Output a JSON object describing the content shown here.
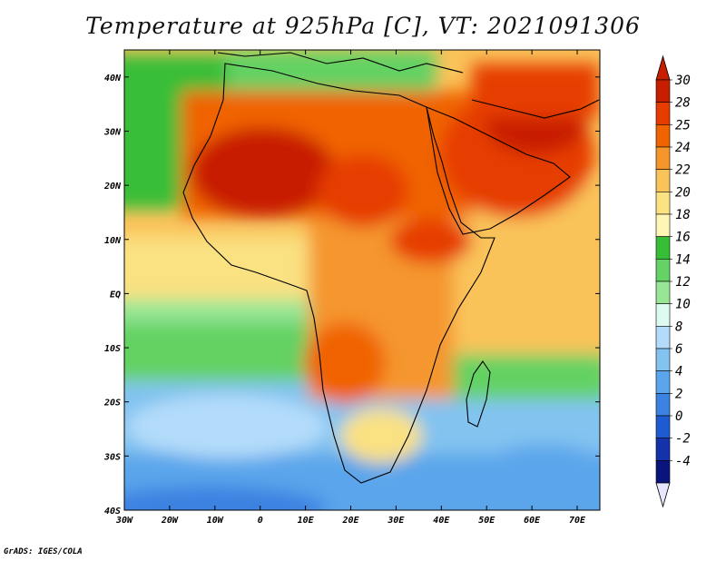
{
  "title": "Temperature at 925hPa [C], VT: 2021091306",
  "credit": "GrADS: IGES/COLA",
  "map": {
    "projection": "lat-lon",
    "lon_range": [
      -30,
      75
    ],
    "lat_range": [
      -40,
      45
    ],
    "lon_ticks": [
      {
        "value": -30,
        "label": "30W"
      },
      {
        "value": -20,
        "label": "20W"
      },
      {
        "value": -10,
        "label": "10W"
      },
      {
        "value": 0,
        "label": "0"
      },
      {
        "value": 10,
        "label": "10E"
      },
      {
        "value": 20,
        "label": "20E"
      },
      {
        "value": 30,
        "label": "30E"
      },
      {
        "value": 40,
        "label": "40E"
      },
      {
        "value": 50,
        "label": "50E"
      },
      {
        "value": 60,
        "label": "60E"
      },
      {
        "value": 70,
        "label": "70E"
      }
    ],
    "lat_ticks": [
      {
        "value": 40,
        "label": "40N"
      },
      {
        "value": 30,
        "label": "30N"
      },
      {
        "value": 20,
        "label": "20N"
      },
      {
        "value": 10,
        "label": "10N"
      },
      {
        "value": 0,
        "label": "EQ"
      },
      {
        "value": -10,
        "label": "10S"
      },
      {
        "value": -20,
        "label": "20S"
      },
      {
        "value": -30,
        "label": "30S"
      },
      {
        "value": -40,
        "label": "40S"
      }
    ]
  },
  "colorbar": {
    "levels": [
      "30",
      "28",
      "25",
      "24",
      "22",
      "20",
      "18",
      "16",
      "14",
      "12",
      "10",
      "8",
      "6",
      "4",
      "2",
      "0",
      "-2",
      "-4"
    ],
    "colors": [
      "#c81e00",
      "#e63c00",
      "#f06400",
      "#f5962d",
      "#fac35a",
      "#fae182",
      "#fff5b4",
      "#37be37",
      "#64d264",
      "#96e696",
      "#dcfaf0",
      "#b4dcfa",
      "#82c3f0",
      "#5aa5eb",
      "#3c82e1",
      "#1e5ad2",
      "#1432aa",
      "#0a147d"
    ],
    "top_color": "#c81e00",
    "bottom_color": "#e6e6ff"
  },
  "colors": {
    "ocean_cool": "#5aa5eb",
    "ocean_mid": "#64d264",
    "land_hot": "#e63c00",
    "desert_max": "#c81e00",
    "land_warm": "#fac35a"
  }
}
